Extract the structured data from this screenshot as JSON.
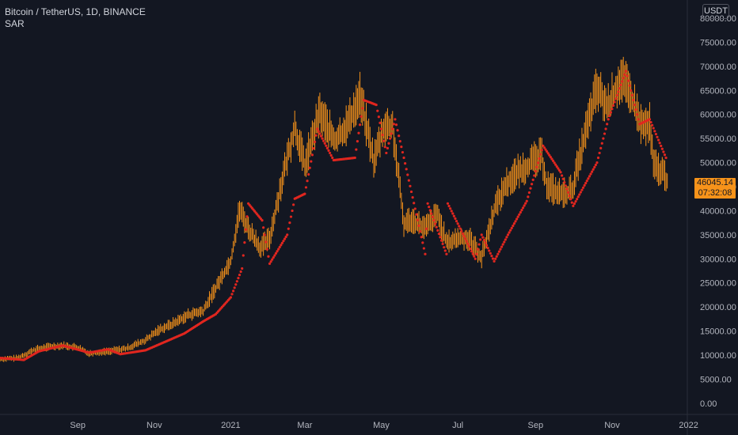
{
  "header": {
    "symbol_line": "Bitcoin / TetherUS, 1D, BINANCE",
    "indicator": "SAR"
  },
  "axis": {
    "currency": "USDT",
    "last_price": "46045.14",
    "countdown": "07:32:08"
  },
  "colors": {
    "background": "#131722",
    "price_bars": "#f7931a",
    "sar": "#e0261f",
    "axis_text": "#b2b5be",
    "price_box": "#f7931a"
  },
  "chart_data": {
    "type": "line",
    "title": "Bitcoin / TetherUS, 1D, BINANCE",
    "xlabel": "",
    "ylabel": "",
    "x_ticks": [
      "Sep",
      "Nov",
      "2021",
      "Mar",
      "May",
      "Jul",
      "Sep",
      "Nov",
      "2022"
    ],
    "y_ticks": [
      "0.00",
      "5000.00",
      "10000.00",
      "15000.00",
      "20000.00",
      "25000.00",
      "30000.00",
      "35000.00",
      "40000.00",
      "45000.00",
      "50000.00",
      "55000.00",
      "60000.00",
      "65000.00",
      "70000.00",
      "75000.00",
      "80000.00"
    ],
    "ylim": [
      -2000,
      80500
    ],
    "xlim": [
      "2020-07-01",
      "2021-12-31"
    ],
    "grid": false,
    "series": [
      {
        "name": "Bitcoin / TetherUS",
        "style": "daily bars",
        "x": [
          "2020-07-01",
          "2020-07-15",
          "2020-07-28",
          "2020-08-10",
          "2020-08-20",
          "2020-09-01",
          "2020-09-10",
          "2020-09-25",
          "2020-10-10",
          "2020-10-25",
          "2020-11-05",
          "2020-11-15",
          "2020-11-28",
          "2020-12-10",
          "2020-12-20",
          "2021-01-01",
          "2021-01-08",
          "2021-01-15",
          "2021-01-25",
          "2021-02-01",
          "2021-02-10",
          "2021-02-21",
          "2021-03-01",
          "2021-03-13",
          "2021-03-25",
          "2021-04-05",
          "2021-04-14",
          "2021-04-25",
          "2021-05-03",
          "2021-05-10",
          "2021-05-19",
          "2021-05-25",
          "2021-06-05",
          "2021-06-15",
          "2021-06-22",
          "2021-07-01",
          "2021-07-10",
          "2021-07-20",
          "2021-07-30",
          "2021-08-08",
          "2021-08-15",
          "2021-08-25",
          "2021-09-06",
          "2021-09-10",
          "2021-09-21",
          "2021-09-30",
          "2021-10-10",
          "2021-10-20",
          "2021-10-28",
          "2021-11-08",
          "2021-11-15",
          "2021-11-25",
          "2021-12-01",
          "2021-12-04",
          "2021-12-10",
          "2021-12-15"
        ],
        "values": [
          9100,
          9300,
          11000,
          11700,
          11900,
          11500,
          10300,
          10700,
          11300,
          13000,
          15200,
          16300,
          18200,
          19000,
          23800,
          29500,
          40000,
          36000,
          32000,
          34000,
          45000,
          57000,
          49000,
          60000,
          54000,
          58000,
          63500,
          50000,
          57000,
          57000,
          37000,
          38000,
          36000,
          39000,
          33000,
          34000,
          34000,
          30000,
          40000,
          45000,
          47000,
          49000,
          51000,
          45000,
          43000,
          43800,
          55000,
          65000,
          61000,
          67000,
          64000,
          57000,
          57500,
          49000,
          48000,
          46045
        ]
      },
      {
        "name": "SAR",
        "style": "dots",
        "x": [
          "2020-07-01",
          "2020-07-20",
          "2020-08-01",
          "2020-08-20",
          "2020-09-10",
          "2020-09-25",
          "2020-10-05",
          "2020-10-25",
          "2020-11-10",
          "2020-11-25",
          "2020-12-10",
          "2020-12-20",
          "2021-01-01",
          "2021-01-10",
          "2021-01-15",
          "2021-01-26",
          "2021-02-01",
          "2021-02-15",
          "2021-02-21",
          "2021-03-01",
          "2021-03-11",
          "2021-03-24",
          "2021-04-10",
          "2021-04-17",
          "2021-04-27",
          "2021-05-05",
          "2021-05-12",
          "2021-05-19",
          "2021-06-05",
          "2021-06-07",
          "2021-06-22",
          "2021-06-23",
          "2021-07-15",
          "2021-07-20",
          "2021-07-30",
          "2021-08-10",
          "2021-08-25",
          "2021-09-07",
          "2021-09-21",
          "2021-10-01",
          "2021-10-20",
          "2021-10-29",
          "2021-11-12",
          "2021-11-23",
          "2021-12-01",
          "2021-12-14"
        ],
        "values": [
          9400,
          9000,
          10800,
          12000,
          10500,
          11200,
          10200,
          11000,
          12800,
          14500,
          17000,
          18500,
          22000,
          28000,
          41500,
          38000,
          29000,
          35000,
          42500,
          43500,
          57000,
          50500,
          51000,
          63000,
          62000,
          52000,
          59000,
          51000,
          31000,
          41500,
          31000,
          41500,
          30000,
          35000,
          29500,
          35000,
          42000,
          53500,
          48000,
          41000,
          50000,
          59000,
          69000,
          58000,
          59000,
          51000
        ]
      }
    ]
  }
}
